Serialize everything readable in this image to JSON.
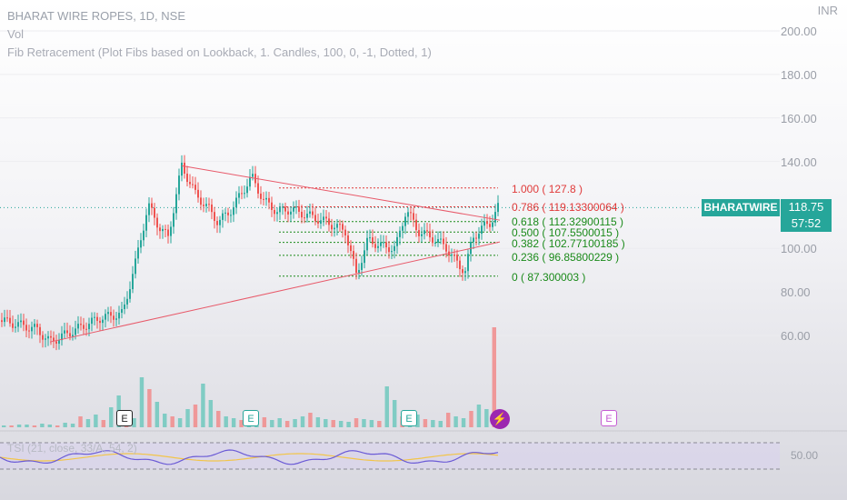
{
  "chart_data": {
    "type": "candlestick",
    "legend_lines": [
      "BHARAT WIRE ROPES, 1D, NSE",
      "Vol",
      "Fib Retracement (Plot Fibs based on Lookback, 1. Candles, 100, 0, -1, Dotted, 1)"
    ],
    "price_scale": {
      "unit": "INR",
      "ticks": [
        "200.00",
        "180.00",
        "160.00",
        "140.00",
        "100.00",
        "80.00",
        "60.00"
      ],
      "ylim": [
        40,
        205
      ]
    },
    "symbol_tag": "BHARATWIRE",
    "last_price": "118.75",
    "countdown": "57:52",
    "fib_levels": [
      {
        "ratio": "1.000",
        "value": 127.8,
        "text": "1.000  ( 127.8 )",
        "color": "#e03a3a"
      },
      {
        "ratio": "0.786",
        "value": 119.133,
        "text": "0.786  ( 119.13300064 )",
        "color": "#e03a3a"
      },
      {
        "ratio": "0.618",
        "value": 112.329,
        "text": "0.618  ( 112.32900115 )",
        "color": "#1a8a1a"
      },
      {
        "ratio": "0.500",
        "value": 107.55,
        "text": "0.500  ( 107.5500015 )",
        "color": "#1a8a1a"
      },
      {
        "ratio": "0.382",
        "value": 102.771,
        "text": "0.382  ( 102.77100185 )",
        "color": "#1a8a1a"
      },
      {
        "ratio": "0.236",
        "value": 96.858,
        "text": "0.236  ( 96.85800229 )",
        "color": "#1a8a1a"
      },
      {
        "ratio": "0",
        "value": 87.3,
        "text": "0  ( 87.300003 )",
        "color": "#1a8a1a"
      }
    ],
    "price_path": [
      [
        0,
        67
      ],
      [
        20,
        65
      ],
      [
        40,
        63
      ],
      [
        55,
        57
      ],
      [
        70,
        60
      ],
      [
        90,
        64
      ],
      [
        110,
        68
      ],
      [
        135,
        70
      ],
      [
        150,
        95
      ],
      [
        163,
        120
      ],
      [
        175,
        110
      ],
      [
        185,
        105
      ],
      [
        200,
        138
      ],
      [
        215,
        125
      ],
      [
        230,
        118
      ],
      [
        240,
        112
      ],
      [
        255,
        118
      ],
      [
        265,
        125
      ],
      [
        277,
        133
      ],
      [
        290,
        122
      ],
      [
        305,
        117
      ],
      [
        320,
        118
      ],
      [
        340,
        115
      ],
      [
        360,
        112
      ],
      [
        380,
        108
      ],
      [
        392,
        88
      ],
      [
        405,
        104
      ],
      [
        420,
        101
      ],
      [
        435,
        100
      ],
      [
        447,
        118
      ],
      [
        460,
        108
      ],
      [
        475,
        105
      ],
      [
        490,
        101
      ],
      [
        505,
        92
      ],
      [
        512,
        90
      ],
      [
        520,
        105
      ],
      [
        532,
        110
      ],
      [
        540,
        112
      ],
      [
        548,
        118.75
      ]
    ],
    "trendlines": [
      {
        "from": [
          200,
          138
        ],
        "to": [
          550,
          113
        ]
      },
      {
        "from": [
          55,
          57
        ],
        "to": [
          550,
          103
        ]
      }
    ],
    "volume_bars": [
      2,
      2,
      3,
      3,
      2,
      4,
      3,
      2,
      5,
      4,
      12,
      9,
      14,
      8,
      22,
      35,
      18,
      10,
      55,
      42,
      28,
      15,
      12,
      10,
      20,
      25,
      48,
      30,
      18,
      12,
      10,
      8,
      9,
      14,
      11,
      8,
      10,
      7,
      9,
      12,
      16,
      11,
      9,
      8,
      7,
      6,
      10,
      9,
      8,
      7,
      45,
      30,
      12,
      10,
      14,
      9,
      8,
      7,
      16,
      12,
      10,
      18,
      25,
      20,
      110
    ],
    "events": [
      "E",
      "E",
      "E",
      "E"
    ],
    "rsi": {
      "label": "TSI (21, close, 33/A, 54, 2)",
      "scale": "50.00"
    }
  }
}
